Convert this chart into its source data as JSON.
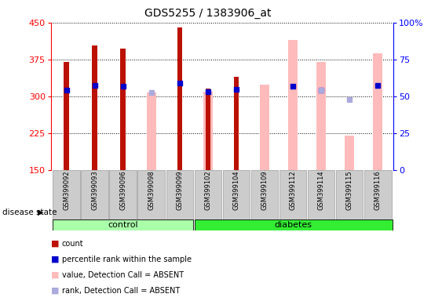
{
  "title": "GDS5255 / 1383906_at",
  "samples": [
    "GSM399092",
    "GSM399093",
    "GSM399096",
    "GSM399098",
    "GSM399099",
    "GSM399102",
    "GSM399104",
    "GSM399109",
    "GSM399112",
    "GSM399114",
    "GSM399115",
    "GSM399116"
  ],
  "n_control": 5,
  "n_diabetes": 7,
  "count_values": [
    370,
    403,
    397,
    null,
    440,
    315,
    340,
    null,
    null,
    null,
    null,
    null
  ],
  "pink_bar_values": [
    null,
    null,
    null,
    307,
    null,
    310,
    null,
    323,
    415,
    370,
    220,
    388
  ],
  "blue_sq_values": [
    313,
    322,
    321,
    null,
    327,
    310,
    314,
    null,
    320,
    313,
    null,
    322
  ],
  "light_blue_sq_values": [
    null,
    null,
    null,
    307,
    null,
    null,
    null,
    null,
    null,
    313,
    293,
    null
  ],
  "ylim_left": [
    150,
    450
  ],
  "ylim_right": [
    0,
    100
  ],
  "yticks_left": [
    150,
    225,
    300,
    375,
    450
  ],
  "yticks_right": [
    0,
    25,
    50,
    75,
    100
  ],
  "colors": {
    "dark_red": "#bb1100",
    "blue": "#0000cc",
    "pink": "#ffbbbb",
    "light_blue": "#aaaadd",
    "control_bg": "#aaffaa",
    "diabetes_bg": "#33ee33",
    "sample_bg": "#cccccc",
    "grid": "black"
  },
  "legend_labels": [
    "count",
    "percentile rank within the sample",
    "value, Detection Call = ABSENT",
    "rank, Detection Call = ABSENT"
  ],
  "legend_colors": [
    "#bb1100",
    "#0000cc",
    "#ffbbbb",
    "#aaaadd"
  ]
}
